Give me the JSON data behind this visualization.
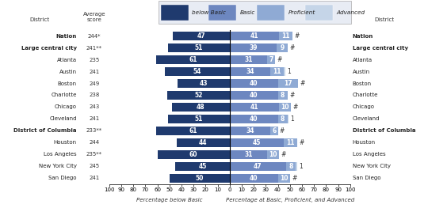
{
  "districts": [
    "Nation",
    "Large central city",
    "Atlanta",
    "Austin",
    "Boston",
    "Charlotte",
    "Chicago",
    "Cleveland",
    "District of Columbia",
    "Houston",
    "Los Angeles",
    "New York City",
    "San Diego"
  ],
  "avg_scores": [
    "244*",
    "241**",
    "235",
    "241",
    "249",
    "238",
    "243",
    "241",
    "233**",
    "244",
    "235**",
    "245",
    "241"
  ],
  "bold_rows": [
    0,
    1,
    8
  ],
  "below_basic": [
    47,
    51,
    61,
    54,
    43,
    52,
    48,
    51,
    61,
    44,
    60,
    45,
    50
  ],
  "basic": [
    41,
    39,
    31,
    34,
    40,
    40,
    41,
    40,
    34,
    45,
    31,
    47,
    40
  ],
  "proficient": [
    11,
    9,
    7,
    11,
    17,
    8,
    10,
    8,
    6,
    11,
    10,
    8,
    10
  ],
  "advanced": [
    null,
    null,
    null,
    1,
    null,
    null,
    null,
    1,
    null,
    null,
    null,
    1,
    null
  ],
  "advanced_sym": [
    "#",
    "#",
    "#",
    "1",
    "#",
    "#",
    "#",
    "1",
    "#",
    "#",
    "#",
    "1",
    "#"
  ],
  "color_below_basic": "#1f3a6e",
  "color_basic": "#6d87c0",
  "color_proficient": "#8faad4",
  "color_advanced": "#c5d5e8",
  "color_score_bg": "#c8d3e8",
  "legend_labels": [
    "below Basic",
    "Basic",
    "Proficient",
    "Advanced"
  ],
  "xlabel_left": "Percentage below Basic",
  "xlabel_right": "Percentage at Basic, Proficient, and Advanced",
  "col_header_district": "District",
  "col_header_score": "Average\nscore",
  "right_header_district": "District",
  "figsize": [
    5.4,
    2.63
  ],
  "dpi": 100
}
